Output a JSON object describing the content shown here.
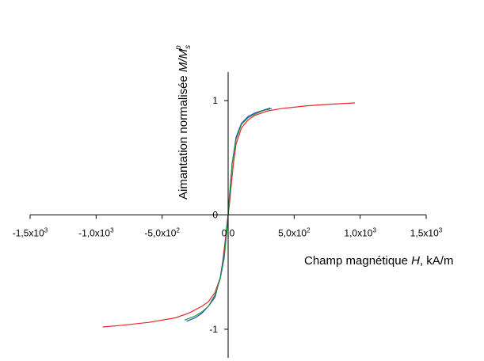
{
  "chart_data": {
    "type": "line",
    "title": "",
    "xlabel_parts": [
      "Champ magnétique ",
      "H",
      ", kA/m"
    ],
    "ylabel_parts": [
      "Aimantation normalisée ",
      "M",
      "/",
      "M",
      "s",
      "p"
    ],
    "xlim": [
      -1500,
      1500
    ],
    "ylim": [
      -1.25,
      1.25
    ],
    "x_ticks": [
      {
        "value": -1500,
        "label": "-1,5x10",
        "exp": "3"
      },
      {
        "value": -1000,
        "label": "-1,0x10",
        "exp": "3"
      },
      {
        "value": -500,
        "label": "-5,0x10",
        "exp": "2"
      },
      {
        "value": 0,
        "label": "0,0",
        "exp": ""
      },
      {
        "value": 500,
        "label": "5,0x10",
        "exp": "2"
      },
      {
        "value": 1000,
        "label": "1,0x10",
        "exp": "3"
      },
      {
        "value": 1500,
        "label": "1,5x10",
        "exp": "3"
      }
    ],
    "y_ticks": [
      {
        "value": 1,
        "label": "1"
      },
      {
        "value": 0,
        "label": "0"
      },
      {
        "value": -1,
        "label": "-1"
      }
    ],
    "grid": false,
    "legend": "none",
    "series": [
      {
        "color": "#e8262a",
        "x": [
          -950,
          -800,
          -600,
          -400,
          -300,
          -200,
          -150,
          -100,
          -60,
          -40,
          -20,
          -10,
          0,
          10,
          20,
          40,
          60,
          100,
          150,
          200,
          300,
          400,
          600,
          800,
          960
        ],
        "y": [
          -0.98,
          -0.965,
          -0.94,
          -0.9,
          -0.86,
          -0.8,
          -0.76,
          -0.68,
          -0.55,
          -0.4,
          -0.2,
          -0.09,
          0,
          0.1,
          0.22,
          0.45,
          0.62,
          0.76,
          0.83,
          0.87,
          0.91,
          0.93,
          0.955,
          0.97,
          0.98
        ]
      },
      {
        "color": "#2b3bd6",
        "x": [
          -315,
          -250,
          -200,
          -150,
          -100,
          -60,
          -30,
          -15,
          0,
          15,
          30,
          60,
          100,
          150,
          200,
          250,
          320
        ],
        "y": [
          -0.93,
          -0.9,
          -0.86,
          -0.8,
          -0.72,
          -0.55,
          -0.35,
          -0.18,
          0,
          0.22,
          0.45,
          0.68,
          0.8,
          0.86,
          0.89,
          0.91,
          0.935
        ]
      },
      {
        "color": "#1f9e3a",
        "x": [
          -330,
          -260,
          -200,
          -150,
          -100,
          -60,
          -30,
          -10,
          0,
          10,
          30,
          60,
          100,
          150,
          200,
          260,
          330
        ],
        "y": [
          -0.92,
          -0.89,
          -0.85,
          -0.8,
          -0.7,
          -0.56,
          -0.38,
          -0.15,
          0,
          0.18,
          0.44,
          0.66,
          0.79,
          0.85,
          0.88,
          0.91,
          0.93
        ]
      }
    ]
  }
}
